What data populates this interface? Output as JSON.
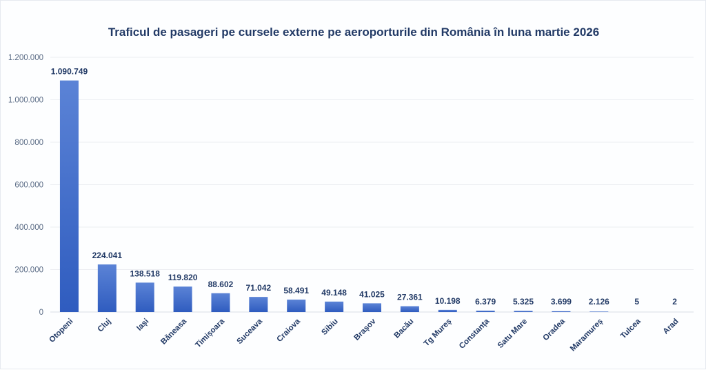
{
  "chart_data": {
    "type": "bar",
    "title": "Traficul de pasageri pe cursele externe pe aeroporturile din România în luna martie 2026",
    "xlabel": "",
    "ylabel": "",
    "ylim": [
      0,
      1200000
    ],
    "yticks": [
      0,
      200000,
      400000,
      600000,
      800000,
      1000000,
      1200000
    ],
    "ytick_labels": [
      "0",
      "200.000",
      "400.000",
      "600.000",
      "800.000",
      "1.000.000",
      "1.200.000"
    ],
    "grid": true,
    "legend": "none",
    "bar_color": "#3a64c4",
    "categories": [
      "Otopeni",
      "Cluj",
      "Iași",
      "Băneasa",
      "Timișoara",
      "Suceava",
      "Craiova",
      "Sibiu",
      "Brașov",
      "Bacău",
      "Tg Mureș",
      "Constanța",
      "Satu Mare",
      "Oradea",
      "Maramureș",
      "Tulcea",
      "Arad"
    ],
    "values": [
      1090749,
      224041,
      138518,
      119820,
      88602,
      71042,
      58491,
      49148,
      41025,
      27361,
      10198,
      6379,
      5325,
      3699,
      2126,
      5,
      2
    ],
    "data_labels": [
      "1.090.749",
      "224.041",
      "138.518",
      "119.820",
      "88.602",
      "71.042",
      "58.491",
      "49.148",
      "41.025",
      "27.361",
      "10.198",
      "6.379",
      "5.325",
      "3.699",
      "2.126",
      "5",
      "2"
    ]
  }
}
